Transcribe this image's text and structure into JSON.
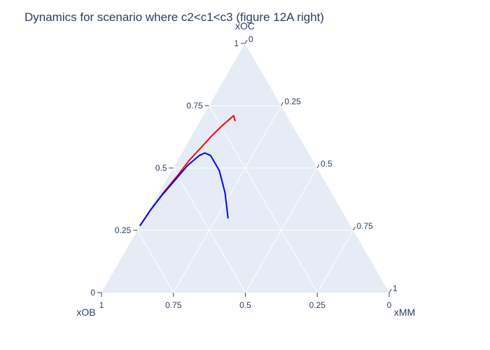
{
  "chart_data": {
    "type": "ternary",
    "title": "Dynamics for scenario where c2<c1<c3 (figure 12A right)",
    "axes": {
      "a": {
        "label": "xOC",
        "position": "top"
      },
      "b": {
        "label": "xOB",
        "position": "bottom-left"
      },
      "c": {
        "label": "xMM",
        "position": "bottom-right"
      }
    },
    "tick_values": [
      0,
      0.25,
      0.5,
      0.75,
      1
    ],
    "tick_labels": {
      "a": [
        "0",
        "0.25",
        "0.5",
        "0.75",
        "1"
      ],
      "b": [
        "0",
        "0.25",
        "0.5",
        "0.75",
        "1"
      ],
      "c": [
        "0",
        "0.25",
        "0.5",
        "0.75",
        "1"
      ]
    },
    "grid": true,
    "colors": {
      "background": "#e5ecf6",
      "grid": "#ffffff",
      "text": "#2a3f5f"
    },
    "series": [
      {
        "color": "#ff0000",
        "points": [
          {
            "a": 0.27,
            "b": 0.73,
            "c": 0.0
          },
          {
            "a": 0.33,
            "b": 0.665,
            "c": 0.005
          },
          {
            "a": 0.4,
            "b": 0.585,
            "c": 0.015
          },
          {
            "a": 0.47,
            "b": 0.5,
            "c": 0.03
          },
          {
            "a": 0.53,
            "b": 0.43,
            "c": 0.04
          },
          {
            "a": 0.58,
            "b": 0.365,
            "c": 0.055
          },
          {
            "a": 0.63,
            "b": 0.3,
            "c": 0.07
          },
          {
            "a": 0.67,
            "b": 0.245,
            "c": 0.085
          },
          {
            "a": 0.7,
            "b": 0.2,
            "c": 0.1
          },
          {
            "a": 0.71,
            "b": 0.185,
            "c": 0.105
          },
          {
            "a": 0.69,
            "b": 0.19,
            "c": 0.12
          }
        ]
      },
      {
        "color": "#0000ff",
        "points": [
          {
            "a": 0.27,
            "b": 0.73,
            "c": 0.0
          },
          {
            "a": 0.33,
            "b": 0.665,
            "c": 0.005
          },
          {
            "a": 0.39,
            "b": 0.595,
            "c": 0.015
          },
          {
            "a": 0.45,
            "b": 0.52,
            "c": 0.03
          },
          {
            "a": 0.51,
            "b": 0.445,
            "c": 0.045
          },
          {
            "a": 0.55,
            "b": 0.385,
            "c": 0.065
          },
          {
            "a": 0.56,
            "b": 0.36,
            "c": 0.08
          },
          {
            "a": 0.55,
            "b": 0.345,
            "c": 0.105
          },
          {
            "a": 0.49,
            "b": 0.345,
            "c": 0.165
          },
          {
            "a": 0.4,
            "b": 0.37,
            "c": 0.23
          },
          {
            "a": 0.3,
            "b": 0.41,
            "c": 0.29
          }
        ]
      }
    ]
  }
}
